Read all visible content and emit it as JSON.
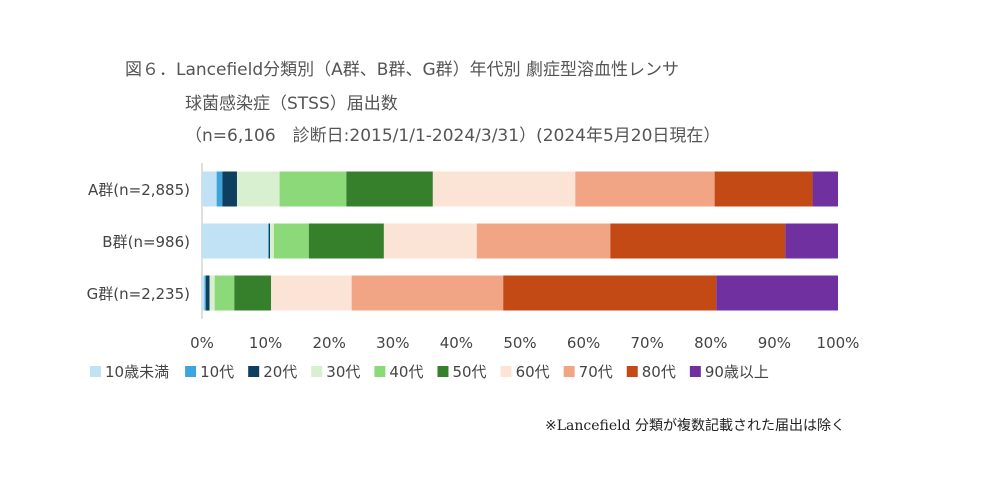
{
  "title": {
    "line1": "図６．Lancefield分類別（A群、B群、G群）年代別 劇症型溶血性レンサ",
    "line2": "球菌感染症（STSS）届出数",
    "line3": "（n=6,106　診断日:2015/1/1-2024/3/31）(2024年5月20日現在）"
  },
  "footnote": "※Lancefield 分類が複数記載された届出は除く",
  "chart_data": {
    "type": "bar",
    "orientation": "horizontal",
    "stacked": "percent",
    "categories": [
      "A群(n=2,885)",
      "B群(n=986)",
      "G群(n=2,235)"
    ],
    "series": [
      {
        "name": "10歳未満",
        "color": "#c0e2f4",
        "values": [
          2.3,
          10.4,
          0.4
        ]
      },
      {
        "name": "10代",
        "color": "#3ea5dc",
        "values": [
          0.9,
          0.1,
          0.2
        ]
      },
      {
        "name": "20代",
        "color": "#0e3f5e",
        "values": [
          2.3,
          0.2,
          0.6
        ]
      },
      {
        "name": "30代",
        "color": "#d8f0cf",
        "values": [
          6.7,
          0.6,
          0.8
        ]
      },
      {
        "name": "40代",
        "color": "#8cd97a",
        "values": [
          10.5,
          5.5,
          3.1
        ]
      },
      {
        "name": "50代",
        "color": "#36802c",
        "values": [
          13.6,
          11.8,
          5.8
        ]
      },
      {
        "name": "60代",
        "color": "#fbe3d6",
        "values": [
          22.4,
          14.6,
          12.7
        ]
      },
      {
        "name": "70代",
        "color": "#f2a584",
        "values": [
          21.9,
          21.0,
          23.9
        ]
      },
      {
        "name": "80代",
        "color": "#c34a14",
        "values": [
          15.4,
          27.5,
          33.6
        ]
      },
      {
        "name": "90歳以上",
        "color": "#7030a0",
        "values": [
          4.0,
          8.3,
          19.2
        ]
      }
    ],
    "xlim": [
      0,
      100
    ],
    "xticks": [
      "0%",
      "10%",
      "20%",
      "30%",
      "40%",
      "50%",
      "60%",
      "70%",
      "80%",
      "90%",
      "100%"
    ],
    "legend_position": "bottom",
    "grid": false
  }
}
